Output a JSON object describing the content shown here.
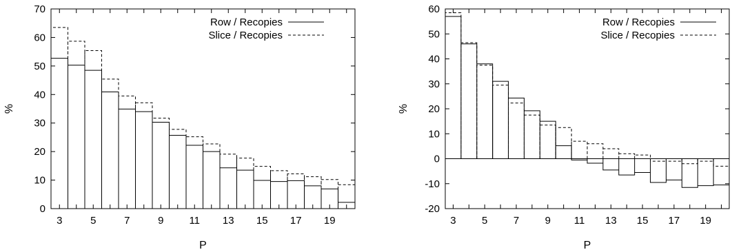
{
  "chart_data": [
    {
      "type": "step",
      "title": "",
      "xlabel": "P",
      "ylabel": "%",
      "xlim": [
        2.5,
        20.5
      ],
      "ylim": [
        0,
        70
      ],
      "xticks": [
        3,
        5,
        7,
        9,
        11,
        13,
        15,
        17,
        19
      ],
      "yticks": [
        0,
        10,
        20,
        30,
        40,
        50,
        60,
        70
      ],
      "x": [
        3,
        4,
        5,
        6,
        7,
        8,
        9,
        10,
        11,
        12,
        13,
        14,
        15,
        16,
        17,
        18,
        19,
        20
      ],
      "series": [
        {
          "name": "Row / Recopies",
          "style": "solid",
          "values": [
            52.7,
            50.3,
            48.5,
            40.9,
            34.9,
            34.0,
            30.3,
            25.7,
            22.2,
            20.0,
            14.3,
            13.5,
            9.9,
            9.5,
            9.8,
            8.0,
            6.9,
            2.2
          ]
        },
        {
          "name": "Slice / Recopies",
          "style": "dashed",
          "values": [
            63.5,
            58.7,
            55.4,
            45.4,
            39.5,
            37.1,
            31.7,
            27.8,
            25.2,
            22.7,
            19.1,
            17.7,
            14.8,
            13.3,
            12.2,
            11.2,
            10.2,
            8.4
          ]
        }
      ],
      "legend": "top-right",
      "grid": false
    },
    {
      "type": "step",
      "title": "",
      "xlabel": "P",
      "ylabel": "%",
      "xlim": [
        2.5,
        20.5
      ],
      "ylim": [
        -20,
        60
      ],
      "xticks": [
        3,
        5,
        7,
        9,
        11,
        13,
        15,
        17,
        19
      ],
      "yticks": [
        -20,
        -10,
        0,
        10,
        20,
        30,
        40,
        50,
        60
      ],
      "x": [
        3,
        4,
        5,
        6,
        7,
        8,
        9,
        10,
        11,
        12,
        13,
        14,
        15,
        16,
        17,
        18,
        19,
        20
      ],
      "series": [
        {
          "name": "Row / Recopies",
          "style": "solid",
          "values": [
            57.0,
            46.0,
            38.0,
            31.0,
            24.3,
            19.2,
            15.0,
            5.2,
            -0.5,
            -1.8,
            -4.5,
            -6.5,
            -5.5,
            -9.5,
            -8.5,
            -11.5,
            -10.8,
            -10.5
          ]
        },
        {
          "name": "Slice / Recopies",
          "style": "dashed",
          "values": [
            58.5,
            46.5,
            37.5,
            29.5,
            22.3,
            17.5,
            13.5,
            12.5,
            7.0,
            6.0,
            4.0,
            2.0,
            1.5,
            -1.0,
            -1.0,
            -2.0,
            -1.0,
            -3.0
          ]
        }
      ],
      "legend": "top-right",
      "grid": false
    }
  ]
}
